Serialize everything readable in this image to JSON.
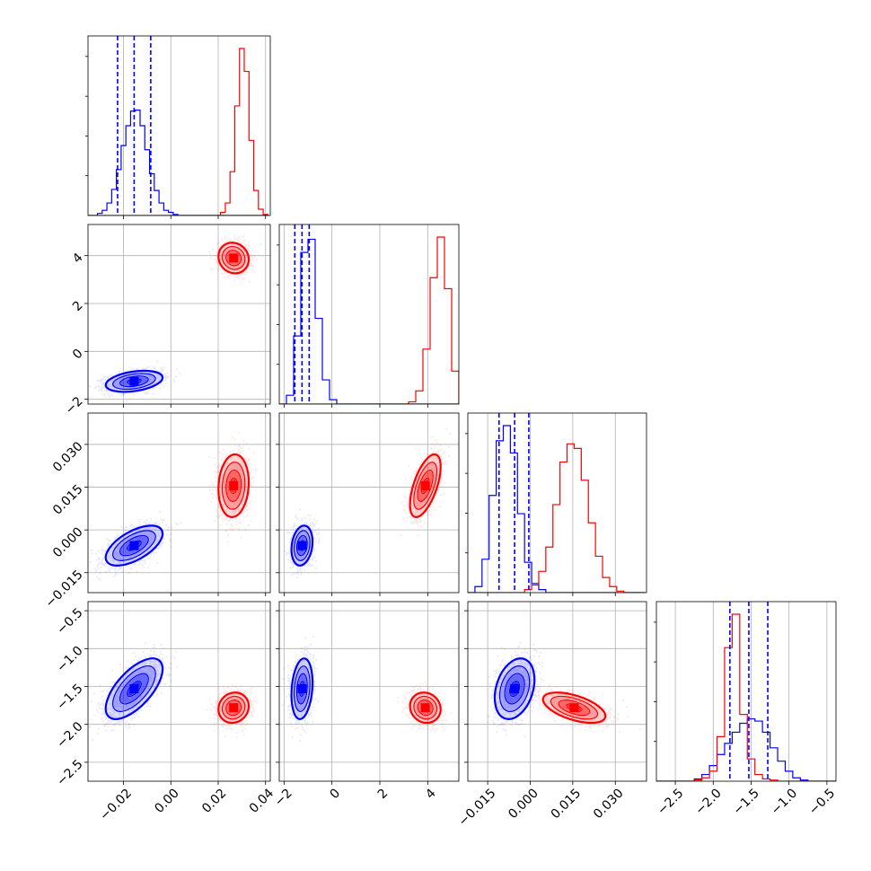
{
  "chart_data": {
    "type": "corner",
    "parameters": 4,
    "colors": {
      "blue": "#0000ff",
      "red": "#ff0000"
    },
    "grid": true,
    "ranges": [
      [
        -0.035,
        0.042
      ],
      [
        -2.2,
        5.3
      ],
      [
        -0.022,
        0.041
      ],
      [
        -2.75,
        -0.38
      ]
    ],
    "tick_values": [
      [
        -0.02,
        0.0,
        0.02,
        0.04
      ],
      [
        -2,
        0,
        2,
        4
      ],
      [
        -0.015,
        0.0,
        0.015,
        0.03
      ],
      [
        -2.5,
        -2.0,
        -1.5,
        -1.0,
        -0.5
      ]
    ],
    "tick_labels": [
      [
        "−0.02",
        "0.00",
        "0.02",
        "0.04"
      ],
      [
        "−2",
        "0",
        "2",
        "4"
      ],
      [
        "−0.015",
        "0.000",
        "0.015",
        "0.030"
      ],
      [
        "−2.5",
        "−2.0",
        "−1.5",
        "−1.0",
        "−0.5"
      ]
    ],
    "quantile_lines_blue": [
      [
        -0.0225,
        -0.0155,
        -0.0085
      ],
      [
        -1.55,
        -1.25,
        -0.95
      ],
      [
        -0.011,
        -0.0055,
        -0.0005
      ],
      [
        -1.78,
        -1.53,
        -1.28
      ]
    ],
    "histograms": [
      {
        "bins": [
          -0.035,
          -0.033,
          -0.031,
          -0.029,
          -0.027,
          -0.025,
          -0.023,
          -0.021,
          -0.019,
          -0.017,
          -0.015,
          -0.013,
          -0.011,
          -0.009,
          -0.007,
          -0.005,
          -0.003,
          -0.001,
          0.001,
          0.003,
          0.005,
          0.007,
          0.009,
          0.011,
          0.013,
          0.015,
          0.017,
          0.019,
          0.021,
          0.023,
          0.025,
          0.027,
          0.029,
          0.031,
          0.033,
          0.035,
          0.037,
          0.039,
          0.041
        ],
        "blue": [
          0,
          0,
          2,
          5,
          12,
          25,
          44,
          67,
          86,
          100,
          101,
          86,
          63,
          40,
          24,
          12,
          5,
          3,
          1,
          0,
          0,
          0,
          0,
          0,
          0,
          0,
          0,
          0,
          0,
          0,
          0,
          0,
          0,
          0,
          0,
          0,
          0,
          0
        ],
        "red": [
          0,
          0,
          0,
          0,
          0,
          0,
          0,
          0,
          0,
          0,
          0,
          0,
          0,
          0,
          0,
          0,
          0,
          0,
          0,
          0,
          0,
          0,
          0,
          0,
          0,
          0,
          0,
          0,
          3,
          12,
          42,
          105,
          160,
          138,
          72,
          24,
          6,
          1
        ]
      },
      {
        "bins": [
          -2.2,
          -1.9,
          -1.6,
          -1.3,
          -1.0,
          -0.7,
          -0.4,
          -0.1,
          0.2,
          0.5,
          0.8,
          1.1,
          1.4,
          1.7,
          2.0,
          2.3,
          2.6,
          2.9,
          3.2,
          3.5,
          3.8,
          4.1,
          4.4,
          4.7,
          5.0,
          5.3
        ],
        "blue": [
          0,
          8,
          62,
          138,
          150,
          78,
          22,
          4,
          0,
          0,
          0,
          0,
          0,
          0,
          0,
          0,
          0,
          0,
          0,
          0,
          0,
          0,
          0,
          0,
          0
        ],
        "red": [
          0,
          0,
          0,
          0,
          0,
          0,
          0,
          0,
          0,
          0,
          0,
          0,
          0,
          0,
          0,
          0,
          0,
          0,
          2,
          12,
          50,
          115,
          152,
          105,
          30
        ]
      },
      {
        "bins": [
          -0.022,
          -0.0195,
          -0.017,
          -0.0145,
          -0.012,
          -0.0095,
          -0.007,
          -0.0045,
          -0.002,
          0.0005,
          0.003,
          0.0055,
          0.008,
          0.0105,
          0.013,
          0.0155,
          0.018,
          0.0205,
          0.023,
          0.0255,
          0.028,
          0.0305,
          0.033,
          0.0355,
          0.038,
          0.0405
        ],
        "blue": [
          0,
          4,
          22,
          64,
          100,
          110,
          92,
          52,
          20,
          6,
          2,
          0,
          0,
          0,
          0,
          0,
          0,
          0,
          0,
          0,
          0,
          0,
          0,
          0,
          0
        ],
        "red": [
          0,
          0,
          0,
          0,
          0,
          0,
          0,
          0,
          2,
          5,
          14,
          30,
          58,
          86,
          98,
          95,
          74,
          46,
          24,
          10,
          4,
          1,
          0,
          0,
          0
        ]
      },
      {
        "bins": [
          -2.75,
          -2.65,
          -2.55,
          -2.45,
          -2.35,
          -2.25,
          -2.15,
          -2.05,
          -1.95,
          -1.85,
          -1.75,
          -1.65,
          -1.55,
          -1.45,
          -1.35,
          -1.25,
          -1.15,
          -1.05,
          -0.95,
          -0.85,
          -0.75,
          -0.65,
          -0.55,
          -0.45,
          -0.35
        ],
        "blue": [
          0,
          0,
          0,
          0,
          0,
          2,
          6,
          14,
          24,
          34,
          44,
          52,
          56,
          54,
          44,
          30,
          18,
          9,
          3,
          1,
          0,
          0,
          0,
          0
        ],
        "red": [
          0,
          0,
          0,
          0,
          0,
          1,
          3,
          9,
          40,
          120,
          150,
          60,
          20,
          6,
          2,
          1,
          0,
          0,
          0,
          0,
          0,
          0,
          0,
          0
        ]
      }
    ],
    "scatter_panels": [
      {
        "x_param": 0,
        "y_param": 1,
        "clusters": [
          {
            "color": "blue",
            "mean": [
              -0.0155,
              -1.25
            ],
            "sd": [
              0.006,
              0.22
            ],
            "rho": 0.35,
            "count": 1400
          },
          {
            "color": "red",
            "mean": [
              0.0265,
              3.9
            ],
            "sd": [
              0.0032,
              0.32
            ],
            "rho": -0.1,
            "count": 1400
          }
        ]
      },
      {
        "x_param": 0,
        "y_param": 2,
        "clusters": [
          {
            "color": "blue",
            "mean": [
              -0.0155,
              -0.0055
            ],
            "sd": [
              0.006,
              0.0035
            ],
            "rho": 0.6,
            "count": 1400
          },
          {
            "color": "red",
            "mean": [
              0.0265,
              0.0155
            ],
            "sd": [
              0.0032,
              0.0055
            ],
            "rho": 0.1,
            "count": 1400
          }
        ]
      },
      {
        "x_param": 0,
        "y_param": 3,
        "clusters": [
          {
            "color": "blue",
            "mean": [
              -0.0155,
              -1.53
            ],
            "sd": [
              0.006,
              0.2
            ],
            "rho": 0.65,
            "count": 1400
          },
          {
            "color": "red",
            "mean": [
              0.0265,
              -1.78
            ],
            "sd": [
              0.0032,
              0.1
            ],
            "rho": 0.1,
            "count": 1400
          }
        ]
      },
      {
        "x_param": 1,
        "y_param": 2,
        "clusters": [
          {
            "color": "blue",
            "mean": [
              -1.25,
              -0.0055
            ],
            "sd": [
              0.22,
              0.0035
            ],
            "rho": 0.2,
            "count": 1400
          },
          {
            "color": "red",
            "mean": [
              3.9,
              0.0155
            ],
            "sd": [
              0.32,
              0.0055
            ],
            "rho": 0.6,
            "count": 1400
          }
        ]
      },
      {
        "x_param": 1,
        "y_param": 3,
        "clusters": [
          {
            "color": "blue",
            "mean": [
              -1.25,
              -1.53
            ],
            "sd": [
              0.22,
              0.2
            ],
            "rho": 0.2,
            "count": 1400
          },
          {
            "color": "red",
            "mean": [
              3.9,
              -1.78
            ],
            "sd": [
              0.32,
              0.1
            ],
            "rho": -0.1,
            "count": 1400
          }
        ]
      },
      {
        "x_param": 2,
        "y_param": 3,
        "clusters": [
          {
            "color": "blue",
            "mean": [
              -0.0055,
              -1.53
            ],
            "sd": [
              0.0035,
              0.2
            ],
            "rho": 0.3,
            "count": 1400
          },
          {
            "color": "red",
            "mean": [
              0.0155,
              -1.78
            ],
            "sd": [
              0.0055,
              0.1
            ],
            "rho": -0.55,
            "count": 1400
          }
        ]
      }
    ]
  }
}
